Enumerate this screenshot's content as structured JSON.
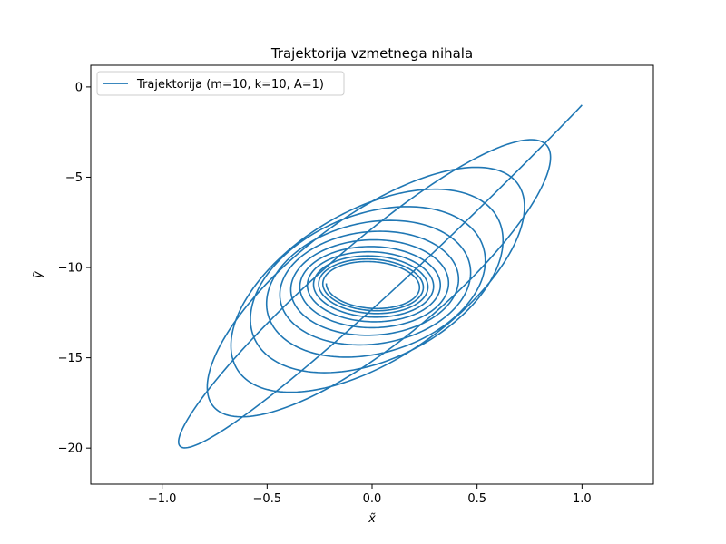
{
  "chart_data": {
    "type": "line",
    "title": "Trajektorija vzmetnega nihala",
    "xlabel": "x̃",
    "ylabel": "ỹ",
    "xlim": [
      -1.34,
      1.34
    ],
    "ylim": [
      -22,
      1.2
    ],
    "xticks": [
      -1.0,
      -0.5,
      0.0,
      0.5,
      1.0
    ],
    "xtick_labels": [
      "−1.0",
      "−0.5",
      "0.0",
      "0.5",
      "1.0"
    ],
    "yticks": [
      0,
      -5,
      -10,
      -15,
      -20
    ],
    "ytick_labels": [
      "0",
      "−5",
      "−10",
      "−15",
      "−20"
    ],
    "grid": false,
    "legend_position": "top-left",
    "series": [
      {
        "name": "Trajektorija (m=10, k=10, A=1)",
        "color": "#1f77b4",
        "shape": "decaying-ellipse-spiral",
        "start": [
          1.0,
          0.0
        ],
        "center": [
          0.0,
          -11.0
        ],
        "end": [
          -0.03,
          -9.5
        ],
        "x_amplitude_start": 1.0,
        "y_amplitude_start": 10.0
      }
    ]
  }
}
